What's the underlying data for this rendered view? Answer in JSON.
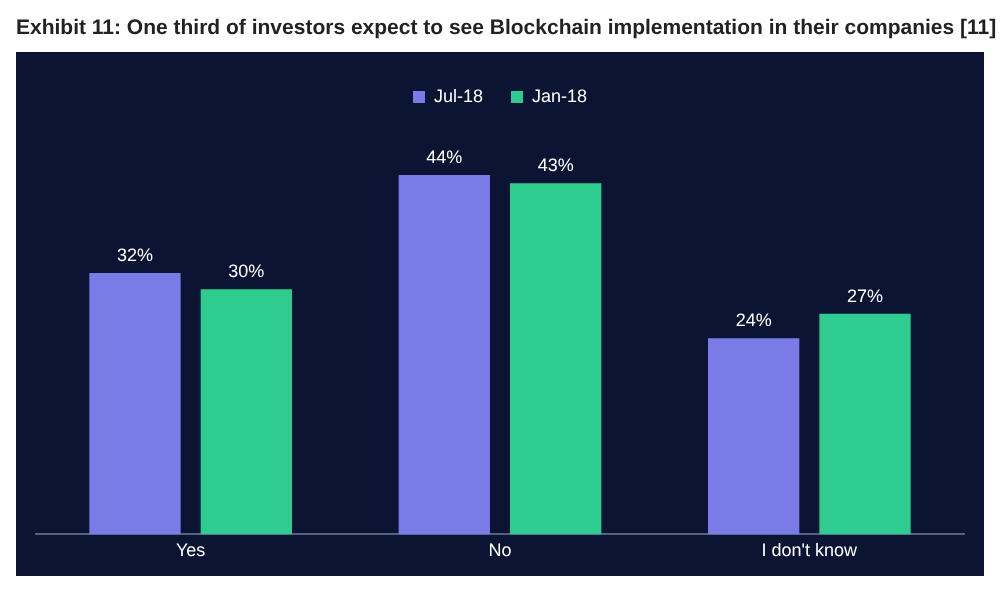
{
  "chart_data": {
    "type": "bar",
    "title": "Exhibit 11: One third of investors expect to see Blockchain implementation in their companies [11]",
    "categories": [
      "Yes",
      "No",
      "I don't know"
    ],
    "series": [
      {
        "name": "Jul-18",
        "color": "#7b7be8",
        "values": [
          32,
          44,
          24
        ],
        "value_labels": [
          "32%",
          "44%",
          "24%"
        ]
      },
      {
        "name": "Jan-18",
        "color": "#2ecc8f",
        "values": [
          30,
          43,
          27
        ],
        "value_labels": [
          "30%",
          "43%",
          "27%"
        ]
      }
    ],
    "legend": "top",
    "grid": false,
    "tick_labels": "x"
  }
}
